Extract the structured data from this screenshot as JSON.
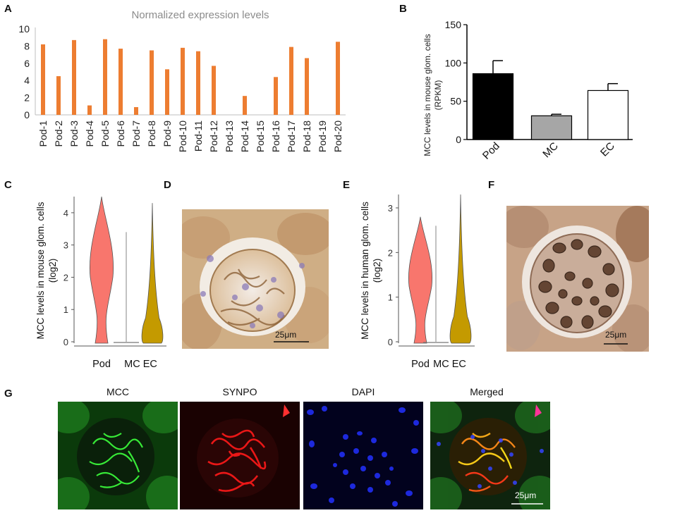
{
  "panels": {
    "A": {
      "letter": "A",
      "chart_data": {
        "type": "bar",
        "title": "Normalized expression levels",
        "categories": [
          "Pod-1",
          "Pod-2",
          "Pod-3",
          "Pod-4",
          "Pod-5",
          "Pod-6",
          "Pod-7",
          "Pod-8",
          "Pod-9",
          "Pod-10",
          "Pod-11",
          "Pod-12",
          "Pod-13",
          "Pod-14",
          "Pod-15",
          "Pod-16",
          "Pod-17",
          "Pod-18",
          "Pod-19",
          "Pod-20"
        ],
        "values": [
          8.2,
          4.5,
          8.7,
          1.1,
          8.8,
          7.7,
          0.9,
          7.5,
          5.3,
          7.8,
          7.4,
          5.7,
          0,
          2.2,
          0,
          4.4,
          7.9,
          6.6,
          0,
          8.5
        ],
        "ylim": [
          0,
          10
        ],
        "yticks": [
          0,
          2,
          4,
          6,
          8,
          10
        ],
        "bar_color": "#ed7d31"
      }
    },
    "B": {
      "letter": "B",
      "chart_data": {
        "type": "bar",
        "categories": [
          "Pod",
          "MC",
          "EC"
        ],
        "values": [
          86,
          31,
          64
        ],
        "errors": [
          17,
          2,
          9
        ],
        "ylim": [
          0,
          150
        ],
        "yticks": [
          0,
          50,
          100,
          150
        ],
        "ylabel_line1": "MCC levels in mouse  glom. cells",
        "ylabel_line2": "(RPKM)",
        "fills": [
          "#000000",
          "#a6a6a6",
          "#ffffff"
        ]
      }
    },
    "C": {
      "letter": "C",
      "chart_data": {
        "type": "violin",
        "categories": [
          "Pod",
          "MC EC"
        ],
        "ylim": [
          0,
          4.5
        ],
        "yticks": [
          0,
          1,
          2,
          3,
          4
        ],
        "ylabel_line1": "MCC levels in mouse glom. cells",
        "ylabel_line2": "(log2)",
        "violins": [
          {
            "name": "Pod",
            "max": 4.5,
            "color": "#f8766d"
          },
          {
            "name": "MC",
            "max": 3.4,
            "color": "#c0c0c0"
          },
          {
            "name": "EC",
            "max": 4.3,
            "color": "#c49a00"
          }
        ]
      }
    },
    "D": {
      "letter": "D",
      "scale_label": "25μm"
    },
    "E": {
      "letter": "E",
      "chart_data": {
        "type": "violin",
        "categories": [
          "Pod",
          "MC EC"
        ],
        "ylim": [
          0,
          3.3
        ],
        "yticks": [
          0,
          1,
          2,
          3
        ],
        "ylabel_line1": "MCC levels in human glom. cells",
        "ylabel_line2": "(log2)",
        "violins": [
          {
            "name": "Pod",
            "max": 2.8,
            "color": "#f8766d"
          },
          {
            "name": "MC",
            "max": 2.6,
            "color": "#c0c0c0"
          },
          {
            "name": "EC",
            "max": 3.3,
            "color": "#c49a00"
          }
        ]
      }
    },
    "F": {
      "letter": "F",
      "scale_label": "25μm"
    },
    "G": {
      "letter": "G",
      "titles": [
        "MCC",
        "SYNPO",
        "DAPI",
        "Merged"
      ],
      "scale_label": "25μm"
    }
  },
  "colors": {
    "stain_bg": "#c9a87f",
    "stain_dark": "#5a3a22",
    "green": "#2bd62b",
    "red": "#e01010",
    "blue": "#1a22d8"
  }
}
